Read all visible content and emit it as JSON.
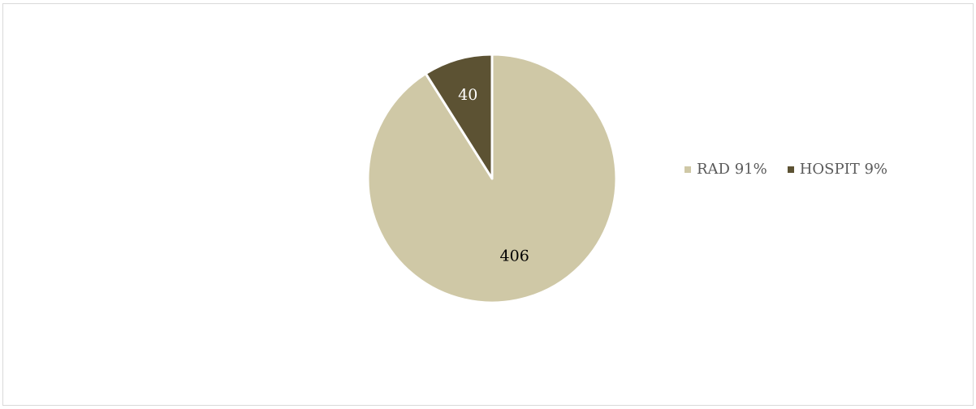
{
  "chart_data": {
    "type": "pie",
    "title": "",
    "categories": [
      "RAD 91%",
      "HOSPIT 9%"
    ],
    "values": [
      406,
      40
    ],
    "colors": [
      "#CFC8A6",
      "#5C5233"
    ],
    "label_colors": [
      "#000000",
      "#FFFFFF"
    ],
    "data_labels": [
      "406",
      "40"
    ],
    "legend": {
      "position": "right",
      "entries": [
        {
          "label": "RAD 91%",
          "color": "#CFC8A6"
        },
        {
          "label": "HOSPIT 9%",
          "color": "#5C5233"
        }
      ]
    }
  }
}
